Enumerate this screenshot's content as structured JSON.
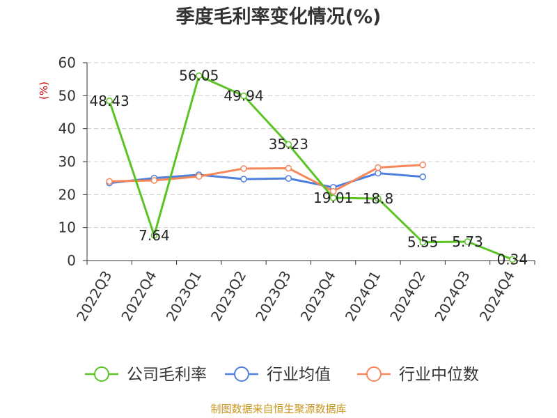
{
  "chart_data": {
    "type": "line",
    "title": "季度毛利率变化情况(%)",
    "ylabel": "(%)",
    "ylim": [
      0,
      60
    ],
    "yticks": [
      0,
      10,
      20,
      30,
      40,
      50,
      60
    ],
    "grid": true,
    "legend_position": "bottom",
    "categories": [
      "2022Q3",
      "2022Q4",
      "2023Q1",
      "2023Q2",
      "2023Q3",
      "2023Q4",
      "2024Q1",
      "2024Q2",
      "2024Q3",
      "2024Q4"
    ],
    "series": [
      {
        "name": "公司毛利率",
        "color": "#5bc424",
        "labels": true,
        "values": [
          48.43,
          7.64,
          56.05,
          49.94,
          35.23,
          19.01,
          18.8,
          5.55,
          5.73,
          0.34
        ]
      },
      {
        "name": "行业均值",
        "color": "#4e7fde",
        "labels": false,
        "values": [
          23.5,
          25.0,
          26.0,
          24.7,
          24.9,
          22.2,
          26.5,
          25.4,
          null,
          null
        ]
      },
      {
        "name": "行业中位数",
        "color": "#f5875a",
        "labels": false,
        "values": [
          24.0,
          24.3,
          25.5,
          27.9,
          28.0,
          21.0,
          28.2,
          29.0,
          null,
          null
        ]
      }
    ]
  },
  "source": "制图数据来自恒生聚源数据库"
}
